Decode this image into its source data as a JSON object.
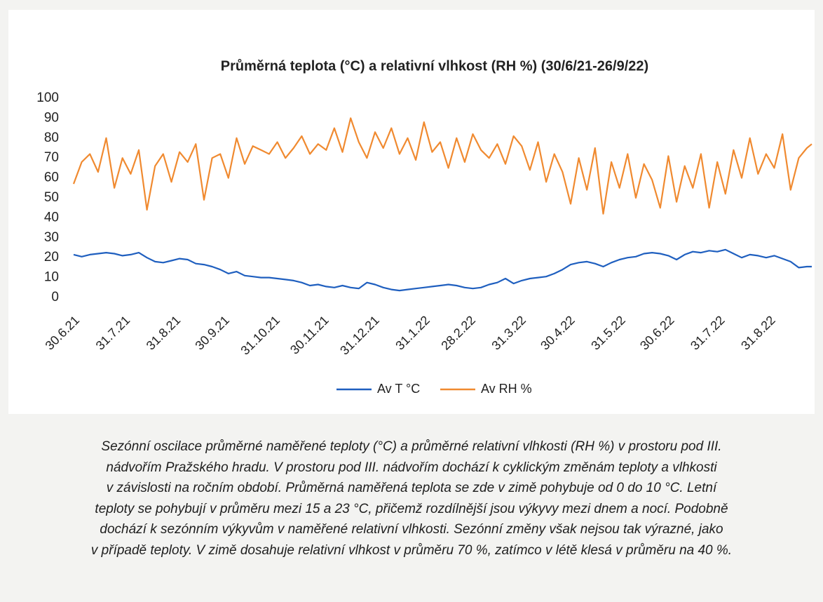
{
  "chart_data": {
    "type": "line",
    "title": "Průměrná teplota (°C) a relativní vlhkost (RH %) (30/6/21-26/9/22)",
    "x": [
      "2021-06-30",
      "2021-07-05",
      "2021-07-10",
      "2021-07-15",
      "2021-07-20",
      "2021-07-25",
      "2021-07-30",
      "2021-08-04",
      "2021-08-09",
      "2021-08-14",
      "2021-08-19",
      "2021-08-24",
      "2021-08-29",
      "2021-09-03",
      "2021-09-08",
      "2021-09-13",
      "2021-09-18",
      "2021-09-23",
      "2021-09-28",
      "2021-10-03",
      "2021-10-08",
      "2021-10-13",
      "2021-10-18",
      "2021-10-23",
      "2021-10-28",
      "2021-11-02",
      "2021-11-07",
      "2021-11-12",
      "2021-11-17",
      "2021-11-22",
      "2021-11-27",
      "2021-12-02",
      "2021-12-07",
      "2021-12-12",
      "2021-12-17",
      "2021-12-22",
      "2021-12-27",
      "2022-01-01",
      "2022-01-06",
      "2022-01-11",
      "2022-01-16",
      "2022-01-21",
      "2022-01-26",
      "2022-01-31",
      "2022-02-05",
      "2022-02-10",
      "2022-02-15",
      "2022-02-20",
      "2022-02-25",
      "2022-03-02",
      "2022-03-07",
      "2022-03-12",
      "2022-03-17",
      "2022-03-22",
      "2022-03-27",
      "2022-04-01",
      "2022-04-06",
      "2022-04-11",
      "2022-04-16",
      "2022-04-21",
      "2022-04-26",
      "2022-05-01",
      "2022-05-06",
      "2022-05-11",
      "2022-05-16",
      "2022-05-21",
      "2022-05-26",
      "2022-05-31",
      "2022-06-05",
      "2022-06-10",
      "2022-06-15",
      "2022-06-20",
      "2022-06-25",
      "2022-06-30",
      "2022-07-05",
      "2022-07-10",
      "2022-07-15",
      "2022-07-20",
      "2022-07-25",
      "2022-07-30",
      "2022-08-04",
      "2022-08-09",
      "2022-08-14",
      "2022-08-19",
      "2022-08-24",
      "2022-08-29",
      "2022-09-03",
      "2022-09-08",
      "2022-09-13",
      "2022-09-18",
      "2022-09-23",
      "2022-09-26"
    ],
    "series": [
      {
        "name": "Av T °C",
        "color": "#1f5fbf",
        "values": [
          21.5,
          20.5,
          21.5,
          22,
          22.5,
          22,
          21,
          21.5,
          22.5,
          20,
          18,
          17.5,
          18.5,
          19.5,
          19,
          17,
          16.5,
          15.5,
          14,
          12,
          13,
          11,
          10.5,
          10,
          10,
          9.5,
          9,
          8.5,
          7.5,
          6,
          6.5,
          5.5,
          5,
          6,
          5,
          4.5,
          7.5,
          6.5,
          5,
          4,
          3.5,
          4,
          4.5,
          5,
          5.5,
          6,
          6.5,
          6,
          5,
          4.5,
          5,
          6.5,
          7.5,
          9.5,
          7,
          8.5,
          9.5,
          10,
          10.5,
          12,
          14,
          16.5,
          17.5,
          18,
          17,
          15.5,
          17.5,
          19,
          20,
          20.5,
          22,
          22.5,
          22,
          21,
          19,
          21.5,
          23,
          22.5,
          23.5,
          23,
          24,
          22,
          20,
          21.5,
          21,
          20,
          21,
          19.5,
          18,
          15,
          15.5,
          15.5
        ]
      },
      {
        "name": "Av RH %",
        "color": "#f08a30",
        "values": [
          57,
          68,
          72,
          63,
          80,
          55,
          70,
          62,
          74,
          44,
          66,
          72,
          58,
          73,
          68,
          77,
          49,
          70,
          72,
          60,
          80,
          67,
          76,
          74,
          72,
          78,
          70,
          75,
          81,
          72,
          77,
          74,
          85,
          73,
          90,
          78,
          70,
          83,
          75,
          85,
          72,
          80,
          69,
          88,
          73,
          78,
          65,
          80,
          68,
          82,
          74,
          70,
          77,
          67,
          81,
          76,
          64,
          78,
          58,
          72,
          63,
          47,
          70,
          54,
          75,
          42,
          68,
          55,
          72,
          50,
          67,
          59,
          45,
          71,
          48,
          66,
          55,
          72,
          45,
          68,
          52,
          74,
          60,
          80,
          62,
          72,
          65,
          82,
          54,
          70,
          75,
          77
        ]
      }
    ],
    "xlim": [
      "2021-06-30",
      "2022-09-26"
    ],
    "xticks": [
      {
        "value": "2021-06-30",
        "label": "30.6.21"
      },
      {
        "value": "2021-07-31",
        "label": "31.7.21"
      },
      {
        "value": "2021-08-31",
        "label": "31.8.21"
      },
      {
        "value": "2021-09-30",
        "label": "30.9.21"
      },
      {
        "value": "2021-10-31",
        "label": "31.10.21"
      },
      {
        "value": "2021-11-30",
        "label": "30.11.21"
      },
      {
        "value": "2021-12-31",
        "label": "31.12.21"
      },
      {
        "value": "2022-01-31",
        "label": "31.1.22"
      },
      {
        "value": "2022-02-28",
        "label": "28.2.22"
      },
      {
        "value": "2022-03-31",
        "label": "31.3.22"
      },
      {
        "value": "2022-04-30",
        "label": "30.4.22"
      },
      {
        "value": "2022-05-31",
        "label": "31.5.22"
      },
      {
        "value": "2022-06-30",
        "label": "30.6.22"
      },
      {
        "value": "2022-07-31",
        "label": "31.7.22"
      },
      {
        "value": "2022-08-31",
        "label": "31.8.22"
      }
    ],
    "ylim": [
      0,
      100
    ],
    "yticks": [
      0,
      10,
      20,
      30,
      40,
      50,
      60,
      70,
      80,
      90,
      100
    ],
    "grid": false,
    "legend": "bottom",
    "caption": [
      "Sezónní oscilace průměrné naměřené teploty (°C) a průměrné relativní vlhkosti (RH %) v prostoru pod III.",
      "nádvořím Pražského hradu. V prostoru pod III. nádvořím dochází k cyklickým změnám teploty a vlhkosti",
      "v závislosti na ročním období. Průměrná naměřená teplota se zde v zimě pohybuje od 0 do 10 °C. Letní",
      "teploty se pohybují v průměru mezi 15 a 23 °C, přičemž rozdílnější jsou výkyvy mezi dnem a nocí. Podobně",
      "dochází k sezónním výkyvům v naměřené relativní vlhkosti. Sezónní změny však nejsou tak výrazné, jako",
      "v případě teploty. V zimě dosahuje relativní vlhkost v průměru 70 %, zatímco v létě klesá v průměru na 40 %."
    ]
  }
}
